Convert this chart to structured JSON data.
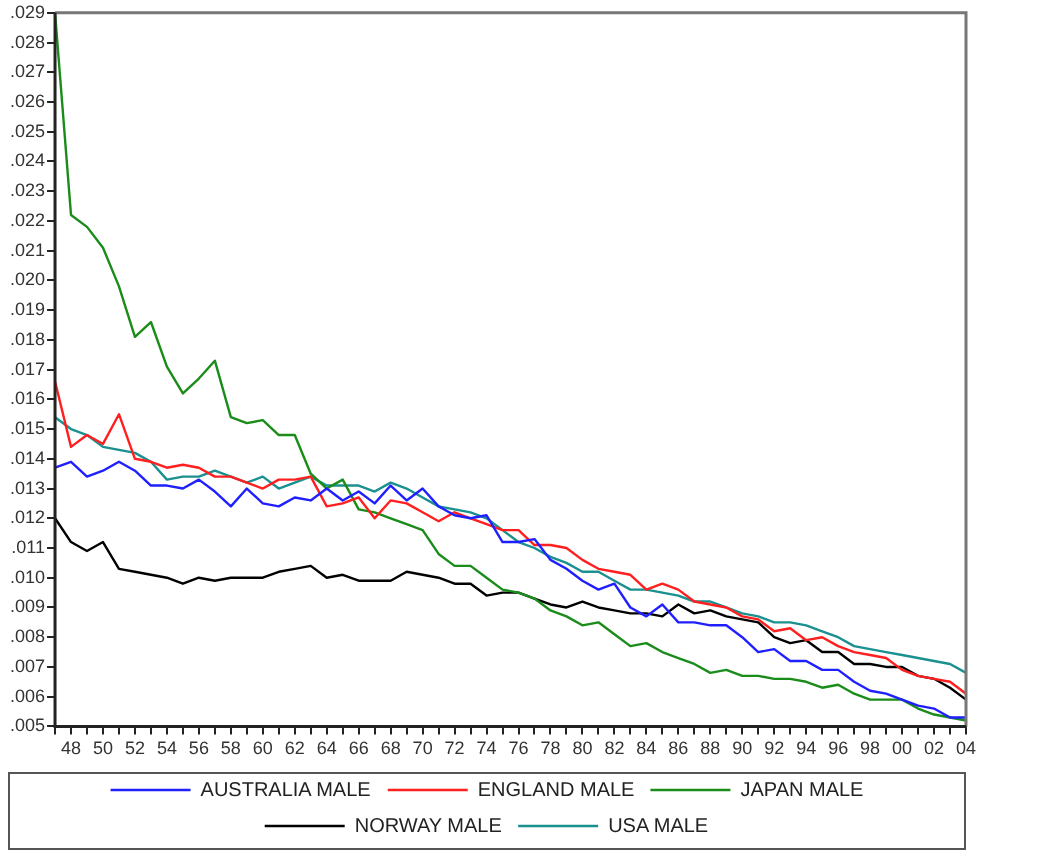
{
  "chart_data": {
    "type": "line",
    "categories": [
      null,
      "48",
      null,
      "50",
      null,
      "52",
      null,
      "54",
      null,
      "56",
      null,
      "58",
      null,
      "60",
      null,
      "62",
      null,
      "64",
      null,
      "66",
      null,
      "68",
      null,
      "70",
      null,
      "72",
      null,
      "74",
      null,
      "76",
      null,
      "78",
      null,
      "80",
      null,
      "82",
      null,
      "84",
      null,
      "86",
      null,
      "88",
      null,
      "90",
      null,
      "92",
      null,
      "94",
      null,
      "96",
      null,
      "98",
      null,
      "00",
      null,
      "02",
      null,
      "04"
    ],
    "ylim": [
      0.005,
      0.029
    ],
    "yticks": [
      {
        "value": 0.005,
        "label": ".005"
      },
      {
        "value": 0.006,
        "label": ".006"
      },
      {
        "value": 0.007,
        "label": ".007"
      },
      {
        "value": 0.008,
        "label": ".008"
      },
      {
        "value": 0.009,
        "label": ".009"
      },
      {
        "value": 0.01,
        "label": ".010"
      },
      {
        "value": 0.011,
        "label": ".011"
      },
      {
        "value": 0.012,
        "label": ".012"
      },
      {
        "value": 0.013,
        "label": ".013"
      },
      {
        "value": 0.014,
        "label": ".014"
      },
      {
        "value": 0.015,
        "label": ".015"
      },
      {
        "value": 0.016,
        "label": ".016"
      },
      {
        "value": 0.017,
        "label": ".017"
      },
      {
        "value": 0.018,
        "label": ".018"
      },
      {
        "value": 0.019,
        "label": ".019"
      },
      {
        "value": 0.02,
        "label": ".020"
      },
      {
        "value": 0.021,
        "label": ".021"
      },
      {
        "value": 0.022,
        "label": ".022"
      },
      {
        "value": 0.023,
        "label": ".023"
      },
      {
        "value": 0.024,
        "label": ".024"
      },
      {
        "value": 0.025,
        "label": ".025"
      },
      {
        "value": 0.026,
        "label": ".026"
      },
      {
        "value": 0.027,
        "label": ".027"
      },
      {
        "value": 0.028,
        "label": ".028"
      },
      {
        "value": 0.029,
        "label": ".029"
      }
    ],
    "grid": false,
    "legend": "bottom",
    "marker": "none",
    "line_style": "solid",
    "series": [
      {
        "name": "AUSTRALIA MALE",
        "color": "#1f1fff",
        "values": [
          0.0137,
          0.0139,
          0.0134,
          0.0136,
          0.0139,
          0.0136,
          0.0131,
          0.0131,
          0.013,
          0.0133,
          0.0129,
          0.0124,
          0.013,
          0.0125,
          0.0124,
          0.0127,
          0.0126,
          0.013,
          0.0126,
          0.0129,
          0.0125,
          0.0131,
          0.0126,
          0.013,
          0.0124,
          0.0121,
          0.012,
          0.0121,
          0.0112,
          0.0112,
          0.0113,
          0.0106,
          0.0103,
          0.0099,
          0.0096,
          0.0098,
          0.009,
          0.0087,
          0.0091,
          0.0085,
          0.0085,
          0.0084,
          0.0084,
          0.008,
          0.0075,
          0.0076,
          0.0072,
          0.0072,
          0.0069,
          0.0069,
          0.0065,
          0.0062,
          0.0061,
          0.0059,
          0.0057,
          0.0056,
          0.0053,
          0.0053
        ]
      },
      {
        "name": "ENGLAND MALE",
        "color": "#ff1f1f",
        "values": [
          0.0166,
          0.0144,
          0.0148,
          0.0145,
          0.0155,
          0.014,
          0.0139,
          0.0137,
          0.0138,
          0.0137,
          0.0134,
          0.0134,
          0.0132,
          0.013,
          0.0133,
          0.0133,
          0.0134,
          0.0124,
          0.0125,
          0.0127,
          0.012,
          0.0126,
          0.0125,
          0.0122,
          0.0119,
          0.0122,
          0.012,
          0.0118,
          0.0116,
          0.0116,
          0.0111,
          0.0111,
          0.011,
          0.0106,
          0.0103,
          0.0102,
          0.0101,
          0.0096,
          0.0098,
          0.0096,
          0.0092,
          0.0091,
          0.009,
          0.0087,
          0.0086,
          0.0082,
          0.0083,
          0.0079,
          0.008,
          0.0077,
          0.0075,
          0.0074,
          0.0073,
          0.0069,
          0.0067,
          0.0066,
          0.0065,
          0.0061
        ]
      },
      {
        "name": "JAPAN MALE",
        "color": "#1a8c1a",
        "values": [
          0.029,
          0.0222,
          0.0218,
          0.0211,
          0.0198,
          0.0181,
          0.0186,
          0.0171,
          0.0162,
          0.0167,
          0.0173,
          0.0154,
          0.0152,
          0.0153,
          0.0148,
          0.0148,
          0.0135,
          0.013,
          0.0133,
          0.0123,
          0.0122,
          0.012,
          0.0118,
          0.0116,
          0.0108,
          0.0104,
          0.0104,
          0.01,
          0.0096,
          0.0095,
          0.0093,
          0.0089,
          0.0087,
          0.0084,
          0.0085,
          0.0081,
          0.0077,
          0.0078,
          0.0075,
          0.0073,
          0.0071,
          0.0068,
          0.0069,
          0.0067,
          0.0067,
          0.0066,
          0.0066,
          0.0065,
          0.0063,
          0.0064,
          0.0061,
          0.0059,
          0.0059,
          0.0059,
          0.0056,
          0.0054,
          0.0053,
          0.0052
        ]
      },
      {
        "name": "NORWAY MALE",
        "color": "#000000",
        "values": [
          0.012,
          0.0112,
          0.0109,
          0.0112,
          0.0103,
          0.0102,
          0.0101,
          0.01,
          0.0098,
          0.01,
          0.0099,
          0.01,
          0.01,
          0.01,
          0.0102,
          0.0103,
          0.0104,
          0.01,
          0.0101,
          0.0099,
          0.0099,
          0.0099,
          0.0102,
          0.0101,
          0.01,
          0.0098,
          0.0098,
          0.0094,
          0.0095,
          0.0095,
          0.0093,
          0.0091,
          0.009,
          0.0092,
          0.009,
          0.0089,
          0.0088,
          0.0088,
          0.0087,
          0.0091,
          0.0088,
          0.0089,
          0.0087,
          0.0086,
          0.0085,
          0.008,
          0.0078,
          0.0079,
          0.0075,
          0.0075,
          0.0071,
          0.0071,
          0.007,
          0.007,
          0.0067,
          0.0066,
          0.0063,
          0.0059
        ]
      },
      {
        "name": "USA MALE",
        "color": "#1a9090",
        "values": [
          0.0154,
          0.015,
          0.0148,
          0.0144,
          0.0143,
          0.0142,
          0.0139,
          0.0133,
          0.0134,
          0.0134,
          0.0136,
          0.0134,
          0.0132,
          0.0134,
          0.013,
          0.0132,
          0.0134,
          0.0131,
          0.0131,
          0.0131,
          0.0129,
          0.0132,
          0.013,
          0.0127,
          0.0124,
          0.0123,
          0.0122,
          0.012,
          0.0116,
          0.0112,
          0.011,
          0.0107,
          0.0105,
          0.0102,
          0.0102,
          0.0099,
          0.0096,
          0.0096,
          0.0095,
          0.0094,
          0.0092,
          0.0092,
          0.009,
          0.0088,
          0.0087,
          0.0085,
          0.0085,
          0.0084,
          0.0082,
          0.008,
          0.0077,
          0.0076,
          0.0075,
          0.0074,
          0.0073,
          0.0072,
          0.0071,
          0.0068
        ]
      }
    ]
  }
}
